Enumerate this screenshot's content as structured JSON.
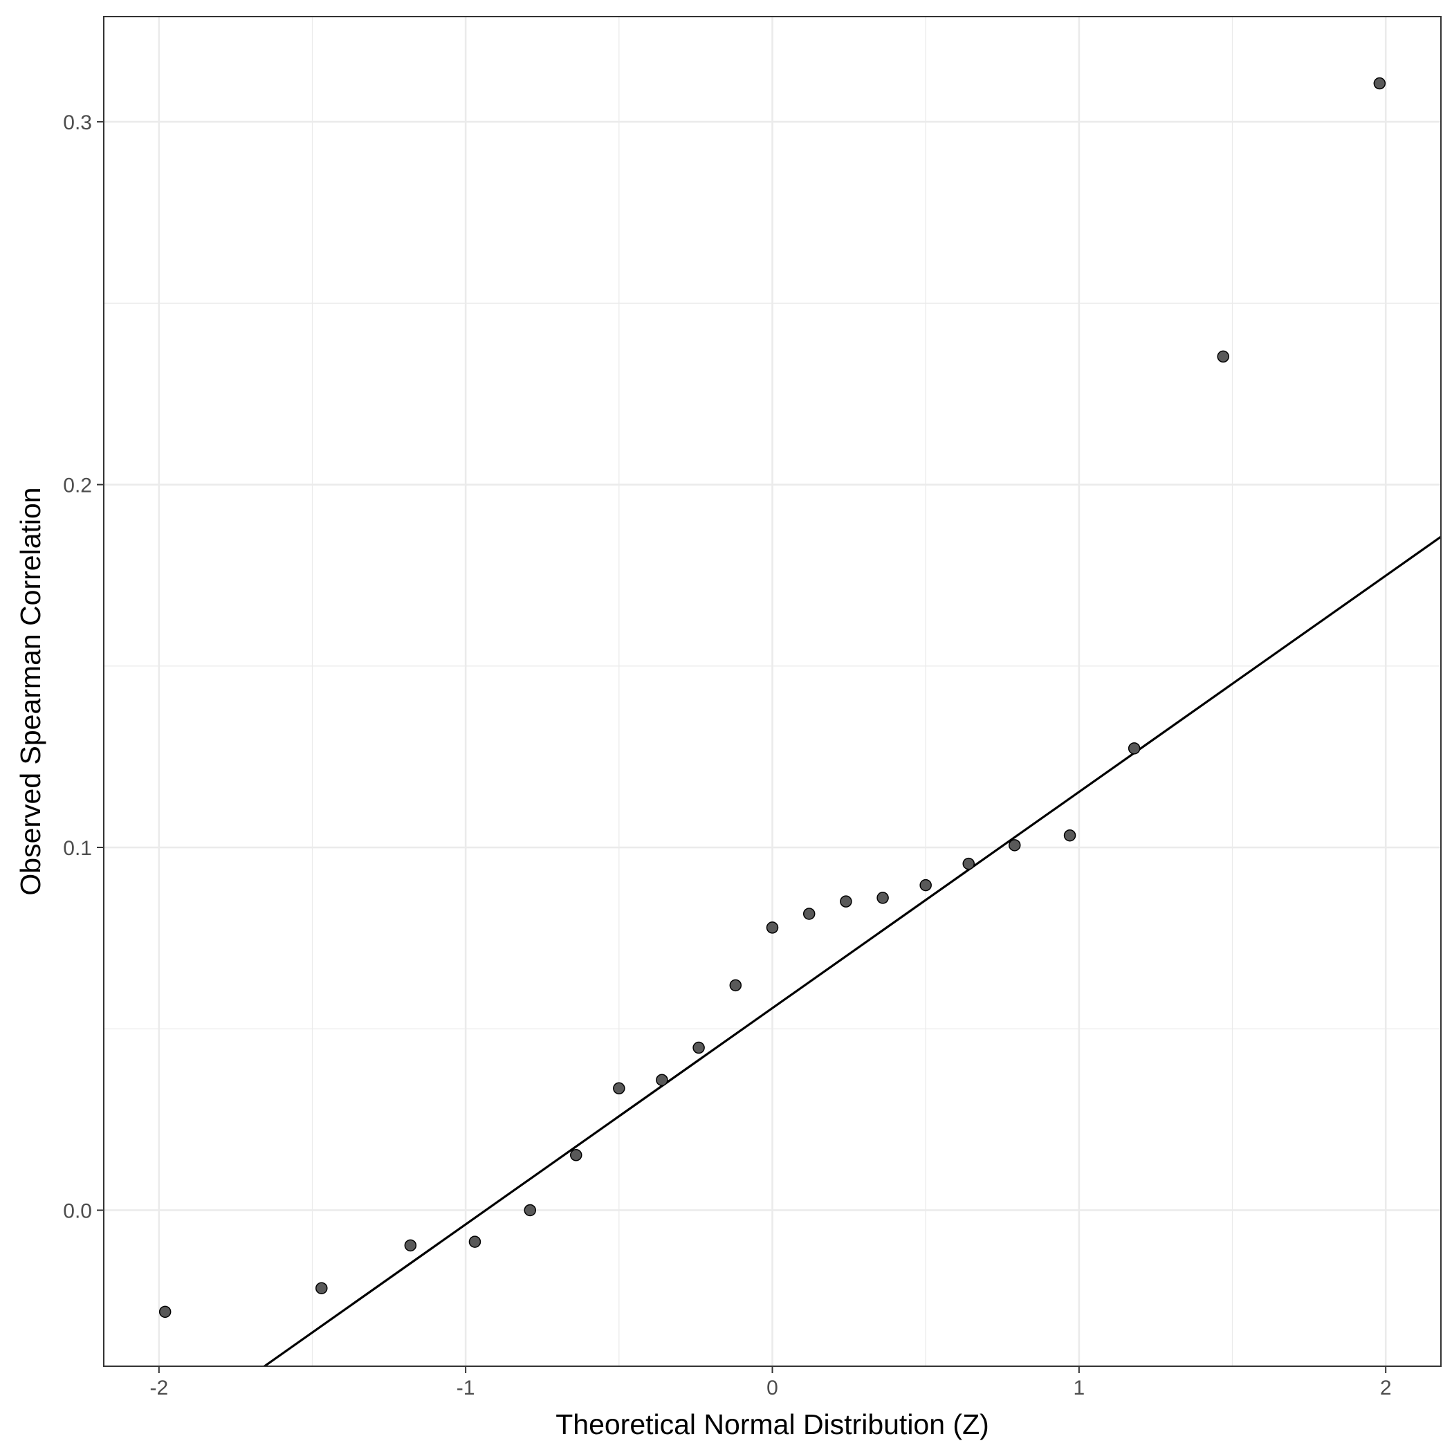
{
  "chart_data": {
    "type": "scatter",
    "title": "",
    "xlabel": "Theoretical Normal Distribution (Z)",
    "ylabel": "Observed Spearman Correlation",
    "xlim": [
      -2.18,
      2.18
    ],
    "ylim": [
      -0.043,
      0.329
    ],
    "xticks": [
      -2,
      -1,
      0,
      1,
      2
    ],
    "xtick_labels": [
      "-2",
      "-1",
      "0",
      "1",
      "2"
    ],
    "yticks": [
      0.0,
      0.1,
      0.2,
      0.3
    ],
    "ytick_labels": [
      "0.0",
      "0.1",
      "0.2",
      "0.3"
    ],
    "grid": true,
    "points": [
      {
        "x": -1.98,
        "y": -0.028
      },
      {
        "x": -1.47,
        "y": -0.0215
      },
      {
        "x": -1.18,
        "y": -0.0097
      },
      {
        "x": -0.97,
        "y": -0.0087
      },
      {
        "x": -0.79,
        "y": 0.0
      },
      {
        "x": -0.64,
        "y": 0.0152
      },
      {
        "x": -0.5,
        "y": 0.0336
      },
      {
        "x": -0.36,
        "y": 0.0359
      },
      {
        "x": -0.24,
        "y": 0.0448
      },
      {
        "x": -0.12,
        "y": 0.062
      },
      {
        "x": 0.0,
        "y": 0.0779
      },
      {
        "x": 0.12,
        "y": 0.0817
      },
      {
        "x": 0.24,
        "y": 0.0851
      },
      {
        "x": 0.36,
        "y": 0.0861
      },
      {
        "x": 0.5,
        "y": 0.0896
      },
      {
        "x": 0.64,
        "y": 0.0955
      },
      {
        "x": 0.79,
        "y": 0.1006
      },
      {
        "x": 0.97,
        "y": 0.1033
      },
      {
        "x": 1.18,
        "y": 0.1273
      },
      {
        "x": 1.47,
        "y": 0.2353
      },
      {
        "x": 1.98,
        "y": 0.3106
      }
    ],
    "reference_line": {
      "intercept": 0.0557,
      "slope": 0.0596
    },
    "colors": {
      "points": "#595959",
      "point_stroke": "#000000",
      "line": "#000000",
      "grid": "#ebebeb",
      "panel_border": "#333333"
    }
  }
}
